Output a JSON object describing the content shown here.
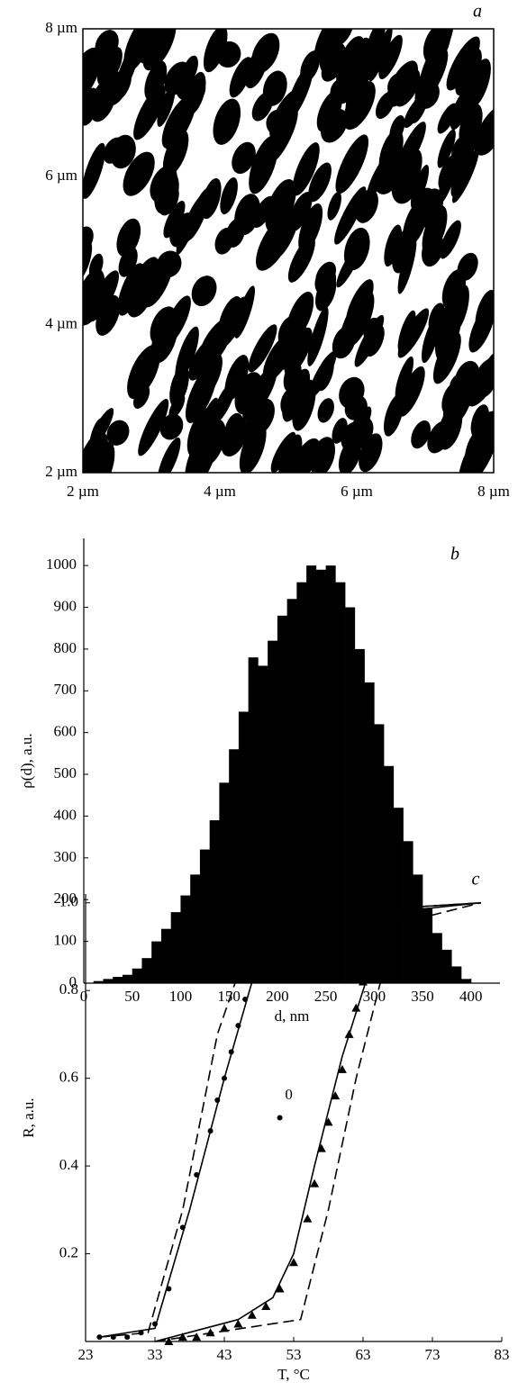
{
  "chart_data": [
    {
      "type": "image",
      "panel_label": "a",
      "xlim": [
        2,
        8
      ],
      "xticks": [
        {
          "value": 2,
          "label": "2 µm"
        },
        {
          "value": 4,
          "label": "4 µm"
        },
        {
          "value": 6,
          "label": "6 µm"
        },
        {
          "value": 8,
          "label": "8 µm"
        }
      ],
      "ylim": [
        2,
        8
      ],
      "yticks": [
        {
          "value": 2,
          "label": "2 µm"
        },
        {
          "value": 4,
          "label": "4 µm"
        },
        {
          "value": 6,
          "label": "6 µm"
        },
        {
          "value": 8,
          "label": "8 µm"
        }
      ]
    },
    {
      "type": "histogram",
      "panel_label": "b",
      "xlabel": "d, nm",
      "ylabel": "ρ(d), a.u.",
      "color": "#000000",
      "bins": [
        0,
        10,
        20,
        30,
        40,
        50,
        60,
        70,
        80,
        90,
        100,
        110,
        120,
        130,
        140,
        150,
        160,
        170,
        180,
        190,
        200,
        210,
        220,
        230,
        240,
        250,
        260,
        270,
        280,
        290,
        300,
        310,
        320,
        330,
        340,
        350,
        360,
        370,
        380,
        390,
        400
      ],
      "values": [
        0,
        5,
        10,
        15,
        20,
        35,
        60,
        100,
        130,
        170,
        210,
        260,
        320,
        390,
        480,
        560,
        650,
        780,
        760,
        820,
        880,
        920,
        960,
        1000,
        990,
        1000,
        960,
        900,
        800,
        720,
        620,
        520,
        420,
        340,
        260,
        180,
        120,
        80,
        40,
        10
      ],
      "xlim": [
        0,
        430
      ],
      "xticks": [
        0,
        50,
        100,
        150,
        200,
        250,
        300,
        350,
        400
      ],
      "ylim": [
        0,
        1065
      ],
      "yticks": [
        0,
        100,
        200,
        300,
        400,
        500,
        600,
        700,
        800,
        900,
        1000
      ]
    },
    {
      "type": "line",
      "panel_label": "c",
      "xlabel": "T, °C",
      "ylabel": "R, a.u.",
      "xlim": [
        23,
        83
      ],
      "xticks": [
        23,
        33,
        43,
        53,
        63,
        73,
        83
      ],
      "ylim": [
        0,
        1.02
      ],
      "yticks": [
        0.2,
        0.4,
        0.6,
        0.8,
        {
          "value": 1,
          "label": "1.0"
        }
      ],
      "series": [
        {
          "color": "#000000",
          "style": "solid",
          "marker": "none",
          "x": [
            25,
            33,
            38,
            43,
            47,
            52,
            60,
            70,
            80
          ],
          "values": [
            0.01,
            0.03,
            0.3,
            0.6,
            0.82,
            0.9,
            0.96,
            0.99,
            1.0
          ]
        },
        {
          "color": "#000000",
          "style": "dashed",
          "marker": "none",
          "x": [
            25,
            32,
            37,
            42,
            47,
            52,
            60,
            80
          ],
          "values": [
            0.01,
            0.02,
            0.3,
            0.7,
            0.93,
            0.97,
            0.98,
            1.0
          ]
        },
        {
          "color": "#000000",
          "style": "none",
          "marker": "circle",
          "x": [
            25,
            27,
            29,
            31,
            33,
            35,
            37,
            39,
            41,
            42,
            43,
            44,
            45,
            46,
            47,
            48,
            49,
            51,
            53,
            56,
            59,
            62,
            65,
            68
          ],
          "values": [
            0.01,
            0.01,
            0.01,
            0.02,
            0.04,
            0.12,
            0.26,
            0.38,
            0.48,
            0.55,
            0.6,
            0.66,
            0.72,
            0.78,
            0.84,
            0.89,
            0.92,
            0.95,
            0.96,
            0.97,
            0.98,
            0.99,
            0.99,
            1.0
          ]
        },
        {
          "color": "#000000",
          "style": "solid",
          "marker": "none",
          "x": [
            33,
            45,
            50,
            53,
            56,
            60,
            65,
            68,
            80
          ],
          "values": [
            0.0,
            0.05,
            0.1,
            0.2,
            0.4,
            0.65,
            0.9,
            0.98,
            1.0
          ]
        },
        {
          "color": "#000000",
          "style": "dashed",
          "marker": "none",
          "x": [
            33,
            54,
            58,
            62,
            66,
            70,
            80
          ],
          "values": [
            0.0,
            0.05,
            0.3,
            0.6,
            0.85,
            0.96,
            1.0
          ]
        },
        {
          "color": "#000000",
          "style": "none",
          "marker": "triangle",
          "x": [
            35,
            37,
            39,
            41,
            43,
            45,
            47,
            49,
            51,
            53,
            55,
            56,
            57,
            58,
            59,
            60,
            61,
            62,
            63,
            64,
            65,
            67,
            69,
            71
          ],
          "values": [
            0.0,
            0.01,
            0.01,
            0.02,
            0.03,
            0.04,
            0.06,
            0.08,
            0.12,
            0.18,
            0.28,
            0.36,
            0.44,
            0.5,
            0.56,
            0.62,
            0.7,
            0.76,
            0.82,
            0.87,
            0.9,
            0.94,
            0.97,
            0.98
          ]
        },
        {
          "color": "#000000",
          "style": "none",
          "marker": "circle",
          "x": [
            51
          ],
          "values": [
            0.51
          ]
        }
      ],
      "annotations": [
        {
          "text": "0",
          "x": 52.3,
          "y": 0.56
        }
      ]
    }
  ]
}
